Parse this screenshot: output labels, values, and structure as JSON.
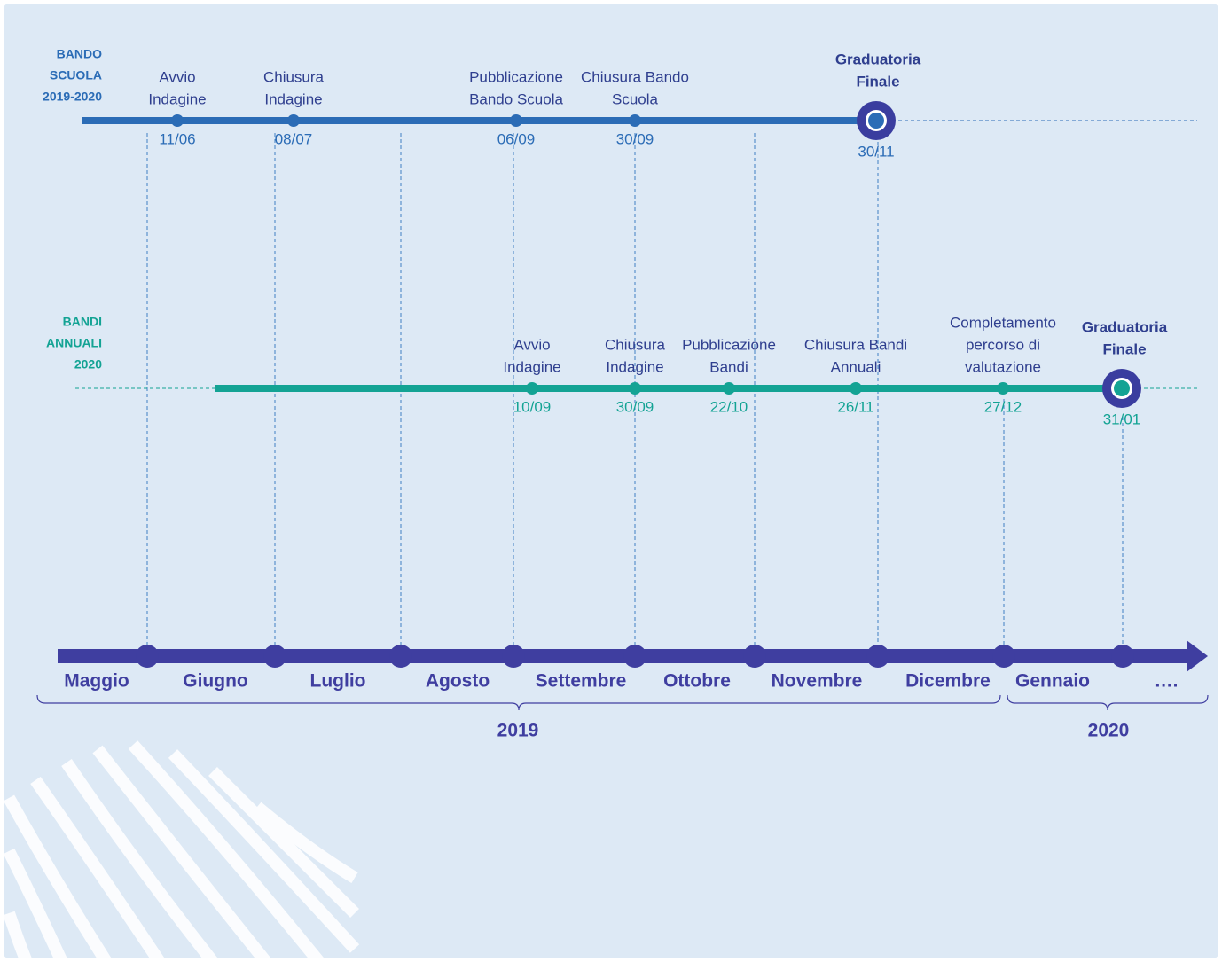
{
  "tracks": [
    {
      "label": [
        "BANDO",
        "SCUOLA",
        "2019-2020"
      ],
      "events": [
        {
          "label": [
            "Avvio",
            "Indagine"
          ],
          "date": "11/06"
        },
        {
          "label": [
            "Chiusura",
            "Indagine"
          ],
          "date": "08/07"
        },
        {
          "label": [
            "Pubblicazione",
            "Bando Scuola"
          ],
          "date": "06/09"
        },
        {
          "label": [
            "Chiusura Bando",
            "Scuola"
          ],
          "date": "30/09"
        }
      ],
      "final": {
        "label": [
          "Graduatoria",
          "Finale"
        ],
        "date": "30/11"
      }
    },
    {
      "label": [
        "BANDI",
        "ANNUALI",
        "2020"
      ],
      "events": [
        {
          "label": [
            "Avvio",
            "Indagine"
          ],
          "date": "10/09"
        },
        {
          "label": [
            "Chiusura",
            "Indagine"
          ],
          "date": "30/09"
        },
        {
          "label": [
            "Pubblicazione",
            "Bandi"
          ],
          "date": "22/10"
        },
        {
          "label": [
            "Chiusura Bandi",
            "Annuali"
          ],
          "date": "26/11"
        },
        {
          "label": [
            "Completamento",
            "percorso di",
            "valutazione"
          ],
          "date": "27/12"
        }
      ],
      "final": {
        "label": [
          "Graduatoria",
          "Finale"
        ],
        "date": "31/01"
      }
    }
  ],
  "months": [
    "Maggio",
    "Giugno",
    "Luglio",
    "Agosto",
    "Settembre",
    "Ottobre",
    "Novembre",
    "Dicembre",
    "Gennaio",
    "…."
  ],
  "years": [
    "2019",
    "2020"
  ]
}
